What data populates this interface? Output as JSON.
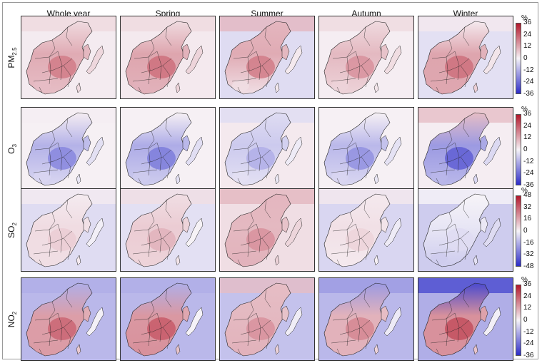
{
  "columns": [
    "Whole year",
    "Spring",
    "Summer",
    "Autumn",
    "Winter"
  ],
  "rows": [
    {
      "species_main": "PM",
      "species_sub": "2.5",
      "unit": "%",
      "ticks": [
        "36",
        "24",
        "12",
        "0",
        "-12",
        "-24",
        "-36"
      ],
      "panels": [
        {
          "mainland": 0.55,
          "north": 0.12,
          "ocean": 0.04,
          "south": 0.25
        },
        {
          "mainland": 0.6,
          "north": 0.12,
          "ocean": 0.05,
          "south": 0.3
        },
        {
          "mainland": 0.55,
          "north": 0.28,
          "ocean": -0.12,
          "south": 0.1
        },
        {
          "mainland": 0.45,
          "north": 0.12,
          "ocean": 0.03,
          "south": 0.15
        },
        {
          "mainland": 0.6,
          "north": 0.05,
          "ocean": -0.1,
          "south": 0.35
        }
      ]
    },
    {
      "species_main": "O",
      "species_sub": "3",
      "unit": "%",
      "ticks": [
        "36",
        "24",
        "12",
        "0",
        "-12",
        "-24",
        "-36"
      ],
      "panels": [
        {
          "mainland": -0.55,
          "north": 0.03,
          "ocean": 0.02,
          "south": -0.15
        },
        {
          "mainland": -0.6,
          "north": 0.02,
          "ocean": 0.02,
          "south": -0.2
        },
        {
          "mainland": -0.35,
          "north": -0.12,
          "ocean": 0.05,
          "south": -0.1
        },
        {
          "mainland": -0.5,
          "north": 0.02,
          "ocean": 0.02,
          "south": -0.15
        },
        {
          "mainland": -0.75,
          "north": 0.25,
          "ocean": 0.03,
          "south": -0.3
        }
      ]
    },
    {
      "species_main": "SO",
      "species_sub": "2",
      "unit": "%",
      "ticks": [
        "48",
        "32",
        "16",
        "0",
        "-16",
        "-32",
        "-48"
      ],
      "panels": [
        {
          "mainland": 0.18,
          "north": 0.04,
          "ocean": -0.12,
          "south": 0.1
        },
        {
          "mainland": 0.3,
          "north": 0.1,
          "ocean": -0.1,
          "south": 0.15
        },
        {
          "mainland": 0.45,
          "north": 0.28,
          "ocean": 0.1,
          "south": 0.3
        },
        {
          "mainland": 0.15,
          "north": 0.05,
          "ocean": -0.15,
          "south": 0.05
        },
        {
          "mainland": -0.12,
          "north": 0.0,
          "ocean": -0.2,
          "south": -0.2
        }
      ]
    },
    {
      "species_main": "NO",
      "species_sub": "2",
      "unit": "%",
      "ticks": [
        "36",
        "24",
        "12",
        "0",
        "-12",
        "-24",
        "-36"
      ],
      "panels": [
        {
          "mainland": 0.65,
          "north": -0.35,
          "ocean": -0.3,
          "south": 0.4
        },
        {
          "mainland": 0.7,
          "north": -0.35,
          "ocean": -0.3,
          "south": 0.45
        },
        {
          "mainland": 0.45,
          "north": 0.25,
          "ocean": -0.25,
          "south": 0.3
        },
        {
          "mainland": 0.5,
          "north": -0.45,
          "ocean": -0.3,
          "south": 0.3
        },
        {
          "mainland": 0.75,
          "north": -0.85,
          "ocean": -0.35,
          "south": 0.45
        }
      ]
    }
  ],
  "colors": {
    "positive": "#b2182b",
    "negative": "#2c2cc8",
    "neutral": "#f7f4f8",
    "border": "#222222"
  }
}
